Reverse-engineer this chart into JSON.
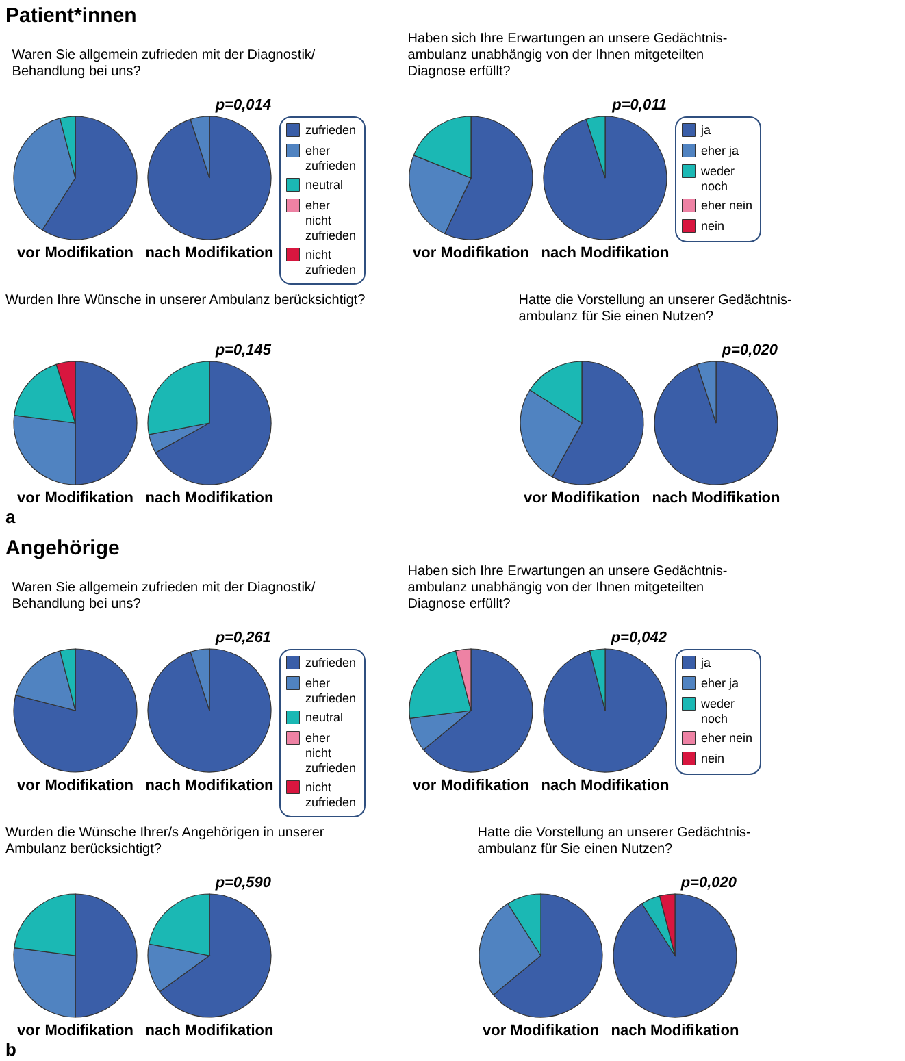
{
  "chart_data": [
    {
      "type": "pie",
      "title": "Waren Sie allgemein zufrieden mit der Diagnostik/\nBehandlung bei uns?",
      "categories": [
        "zufrieden",
        "eher zufrieden",
        "neutral",
        "eher nicht zufrieden",
        "nicht zufrieden"
      ],
      "colors": [
        "#3a5ea8",
        "#5083c1",
        "#1bb8b4",
        "#ee82a4",
        "#d8163f"
      ],
      "legend": "right",
      "annotations": [
        "p=0,014",
        "Patient*innen"
      ],
      "series": [
        {
          "name": "vor Modifikation",
          "values": [
            59,
            37,
            4,
            0,
            0
          ]
        },
        {
          "name": "nach Modifikation",
          "values": [
            95,
            5,
            0,
            0,
            0
          ]
        }
      ]
    },
    {
      "type": "pie",
      "title": "Haben sich Ihre Erwartungen an unsere Gedächtnis-\nambulanz unabhängig von der Ihnen mitgeteilten\nDiagnose erfüllt?",
      "categories": [
        "ja",
        "eher ja",
        "weder noch",
        "eher nein",
        "nein"
      ],
      "colors": [
        "#3a5ea8",
        "#5083c1",
        "#1bb8b4",
        "#ee82a4",
        "#d8163f"
      ],
      "legend": "right",
      "annotations": [
        "p=0,011"
      ],
      "series": [
        {
          "name": "vor Modifikation",
          "values": [
            57,
            24,
            19,
            0,
            0
          ]
        },
        {
          "name": "nach Modifikation",
          "values": [
            95,
            0,
            5,
            0,
            0
          ]
        }
      ]
    },
    {
      "type": "pie",
      "title": "Wurden Ihre Wünsche in unserer Ambulanz berücksichtigt?",
      "categories": [
        null,
        null,
        null,
        null,
        null
      ],
      "colors": [
        "#3a5ea8",
        "#5083c1",
        "#1bb8b4",
        "#ee82a4",
        "#d8163f"
      ],
      "annotations": [
        "p=0,145",
        "a"
      ],
      "series": [
        {
          "name": "vor Modifikation",
          "values": [
            50,
            27,
            18,
            0,
            5
          ]
        },
        {
          "name": "nach Modifikation",
          "values": [
            67,
            5,
            28,
            0,
            0
          ]
        }
      ]
    },
    {
      "type": "pie",
      "title": "Hatte die Vorstellung an unserer Gedächtnis-\nambulanz für Sie einen Nutzen?",
      "categories": [
        null,
        null,
        null,
        null,
        null
      ],
      "colors": [
        "#3a5ea8",
        "#5083c1",
        "#1bb8b4",
        "#ee82a4",
        "#d8163f"
      ],
      "annotations": [
        "p=0,020"
      ],
      "series": [
        {
          "name": "vor Modifikation",
          "values": [
            58,
            26,
            16,
            0,
            0
          ]
        },
        {
          "name": "nach Modifikation",
          "values": [
            95,
            5,
            0,
            0,
            0
          ]
        }
      ]
    },
    {
      "type": "pie",
      "title": "Waren Sie allgemein zufrieden mit der Diagnostik/\nBehandlung bei uns?",
      "categories": [
        "zufrieden",
        "eher zufrieden",
        "neutral",
        "eher nicht zufrieden",
        "nicht zufrieden"
      ],
      "colors": [
        "#3a5ea8",
        "#5083c1",
        "#1bb8b4",
        "#ee82a4",
        "#d8163f"
      ],
      "legend": "right",
      "annotations": [
        "p=0,261",
        "Angehörige"
      ],
      "series": [
        {
          "name": "vor Modifikation",
          "values": [
            79,
            17,
            4,
            0,
            0
          ]
        },
        {
          "name": "nach Modifikation",
          "values": [
            95,
            5,
            0,
            0,
            0
          ]
        }
      ]
    },
    {
      "type": "pie",
      "title": "Haben sich Ihre Erwartungen an unsere Gedächtnis-\nambulanz unabhängig von der Ihnen mitgeteilten\nDiagnose erfüllt?",
      "categories": [
        "ja",
        "eher ja",
        "weder noch",
        "eher nein",
        "nein"
      ],
      "colors": [
        "#3a5ea8",
        "#5083c1",
        "#1bb8b4",
        "#ee82a4",
        "#d8163f"
      ],
      "legend": "right",
      "annotations": [
        "p=0,042"
      ],
      "series": [
        {
          "name": "vor Modifikation",
          "values": [
            64,
            9,
            23,
            4,
            0
          ]
        },
        {
          "name": "nach Modifikation",
          "values": [
            96,
            0,
            4,
            0,
            0
          ]
        }
      ]
    },
    {
      "type": "pie",
      "title": "Wurden die Wünsche Ihrer/s Angehörigen in unserer\nAmbulanz berücksichtigt?",
      "categories": [
        null,
        null,
        null,
        null,
        null
      ],
      "colors": [
        "#3a5ea8",
        "#5083c1",
        "#1bb8b4",
        "#ee82a4",
        "#d8163f"
      ],
      "annotations": [
        "p=0,590",
        "b"
      ],
      "series": [
        {
          "name": "vor Modifikation",
          "values": [
            50,
            27,
            23,
            0,
            0
          ]
        },
        {
          "name": "nach Modifikation",
          "values": [
            65,
            13,
            22,
            0,
            0
          ]
        }
      ]
    },
    {
      "type": "pie",
      "title": "Hatte die Vorstellung an unserer Gedächtnis-\nambulanz für Sie einen Nutzen?",
      "categories": [
        null,
        null,
        null,
        null,
        null
      ],
      "colors": [
        "#3a5ea8",
        "#5083c1",
        "#1bb8b4",
        "#ee82a4",
        "#d8163f"
      ],
      "annotations": [
        "p=0,020"
      ],
      "series": [
        {
          "name": "vor Modifikation",
          "values": [
            64,
            27,
            9,
            0,
            0
          ]
        },
        {
          "name": "nach Modifikation",
          "values": [
            91,
            0,
            5,
            0,
            4
          ]
        }
      ]
    }
  ]
}
